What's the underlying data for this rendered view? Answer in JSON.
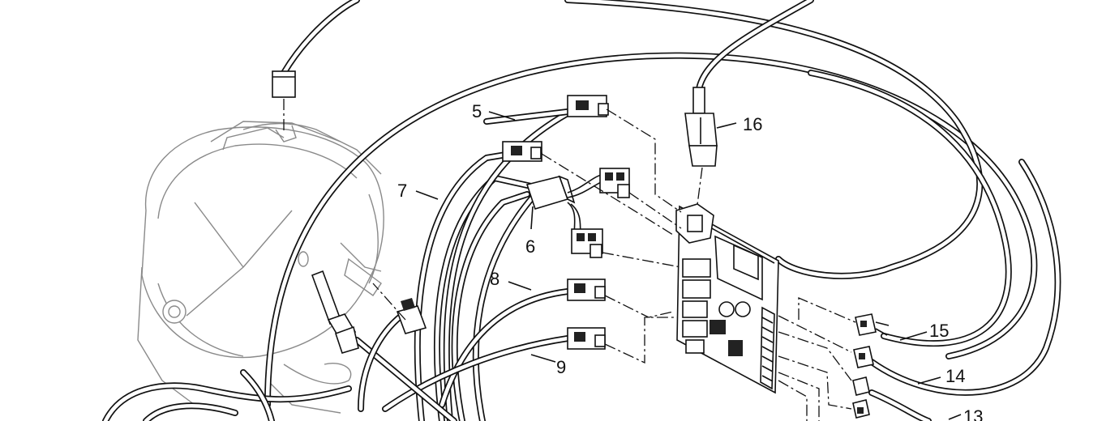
{
  "callouts": {
    "c5": "5",
    "c6": "6",
    "c7": "7",
    "c8": "8",
    "c9": "9",
    "c13": "13",
    "c14": "14",
    "c15": "15",
    "c16": "16"
  },
  "colors": {
    "line": "#111111",
    "ghost": "#8a8a8a",
    "background": "#ffffff"
  }
}
